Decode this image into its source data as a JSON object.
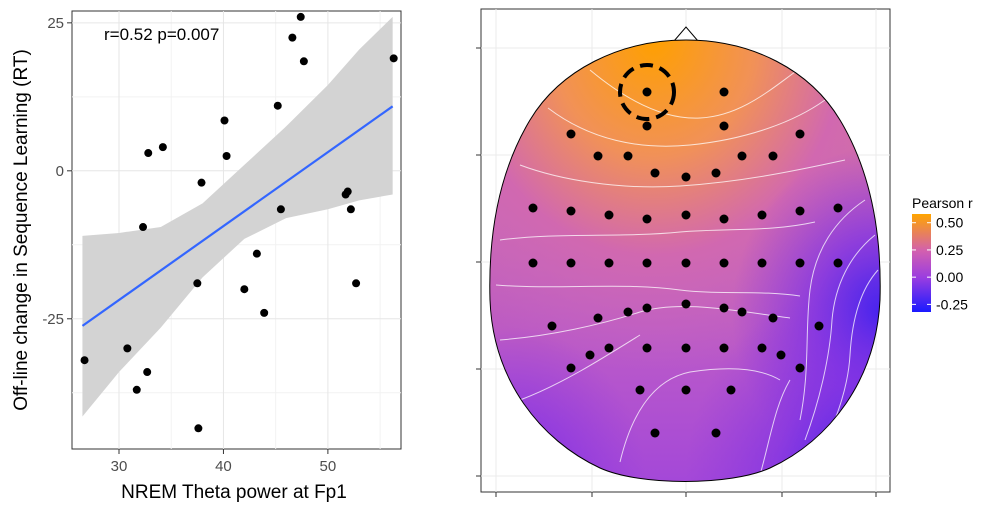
{
  "chart_data": [
    {
      "type": "scatter",
      "annotation": "r=0.52 p=0.007",
      "xlabel": "NREM Theta power at Fp1",
      "ylabel": "Off-line change in Sequence Learning (RT)",
      "xlim": [
        25.5,
        57
      ],
      "ylim": [
        -47,
        27
      ],
      "x_ticks": [
        30,
        40,
        50
      ],
      "y_ticks": [
        25,
        0,
        -25
      ],
      "grid": true,
      "fit_line": {
        "x": [
          26.5,
          56.2
        ],
        "y": [
          -26.2,
          10.9
        ]
      },
      "confidence_band": {
        "x": [
          26.5,
          30,
          34,
          38,
          42,
          46,
          50,
          53,
          56.2
        ],
        "upper": [
          -11,
          -10.5,
          -9.5,
          -5.5,
          1,
          7.5,
          14.5,
          20.5,
          26
        ],
        "lower": [
          -41.5,
          -34,
          -26.5,
          -18,
          -11.5,
          -8,
          -6.5,
          -5,
          -4
        ]
      },
      "points": [
        {
          "x": 26.7,
          "y": -32
        },
        {
          "x": 30.8,
          "y": -30
        },
        {
          "x": 31.7,
          "y": -37
        },
        {
          "x": 32.3,
          "y": -9.5
        },
        {
          "x": 32.7,
          "y": -34
        },
        {
          "x": 32.8,
          "y": 3
        },
        {
          "x": 34.2,
          "y": 4
        },
        {
          "x": 37.5,
          "y": -19
        },
        {
          "x": 37.6,
          "y": -43.5
        },
        {
          "x": 37.9,
          "y": -2
        },
        {
          "x": 40.1,
          "y": 8.5
        },
        {
          "x": 40.3,
          "y": 2.5
        },
        {
          "x": 42.0,
          "y": -20
        },
        {
          "x": 43.2,
          "y": -14
        },
        {
          "x": 43.9,
          "y": -24
        },
        {
          "x": 45.2,
          "y": 11
        },
        {
          "x": 45.5,
          "y": -6.5
        },
        {
          "x": 46.6,
          "y": 22.5
        },
        {
          "x": 47.4,
          "y": 26
        },
        {
          "x": 47.7,
          "y": 18.5
        },
        {
          "x": 51.7,
          "y": -4
        },
        {
          "x": 51.9,
          "y": -3.5
        },
        {
          "x": 52.2,
          "y": -6.5
        },
        {
          "x": 52.7,
          "y": -19
        },
        {
          "x": 56.3,
          "y": 19
        }
      ],
      "colors": {
        "line": "#3366ff",
        "band": "#d3d3d3",
        "point": "#000000"
      }
    },
    {
      "type": "heatmap",
      "subtype": "topographic_scalp_map",
      "legend_title": "Pearson r",
      "legend_ticks": [
        "0.50",
        "0.25",
        "0.00",
        "-0.25"
      ],
      "legend_values": [
        0.5,
        0.25,
        0.0,
        -0.25
      ],
      "scale_range": [
        -0.32,
        0.58
      ],
      "colors": {
        "high": "#ffa500",
        "mid": "#c45cc4",
        "low": "#1a1aff"
      },
      "highlighted_electrode": "Fp1",
      "electrode_count": 61
    }
  ]
}
